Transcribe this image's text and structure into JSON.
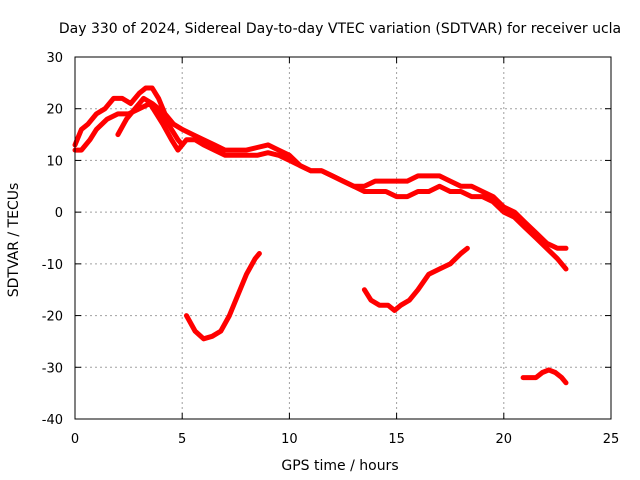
{
  "chart_data": {
    "type": "scatter",
    "title": "Day 330 of 2024, Sidereal Day-to-day VTEC variation (SDTVAR) for receiver ucla",
    "xlabel": "GPS time / hours",
    "ylabel": "SDTVAR / TECUs",
    "xlim": [
      0,
      25
    ],
    "ylim": [
      -40,
      30
    ],
    "xticks": [
      0,
      5,
      10,
      15,
      20,
      25
    ],
    "yticks": [
      -40,
      -30,
      -20,
      -10,
      0,
      10,
      20,
      30
    ],
    "grid": true,
    "series_color": "#ff0000",
    "series": [
      {
        "name": "band-upper",
        "x": [
          0.0,
          0.3,
          0.6,
          1.0,
          1.4,
          1.8,
          2.2,
          2.6,
          3.0,
          3.3,
          3.6,
          3.9,
          4.2,
          4.6,
          5.0,
          5.5,
          6.0,
          6.5,
          7.0,
          7.5,
          8.0,
          8.5,
          9.0,
          9.5,
          10.0,
          10.5,
          11.0,
          11.5,
          12.0,
          12.5,
          13.0,
          13.5,
          14.0,
          14.5,
          15.0,
          15.5,
          16.0,
          16.5,
          17.0,
          17.5,
          18.0,
          18.5,
          19.0,
          19.5,
          20.0,
          20.5,
          21.0,
          21.5,
          22.0,
          22.5,
          22.9
        ],
        "y": [
          13,
          16,
          17,
          19,
          20,
          22,
          22,
          21,
          23,
          24,
          24,
          22,
          19,
          17,
          16,
          15,
          14,
          13,
          12,
          12,
          12,
          12.5,
          13,
          12,
          11,
          9,
          8,
          8,
          7,
          6,
          5,
          5,
          6,
          6,
          6,
          6,
          7,
          7,
          7,
          6,
          5,
          5,
          4,
          3,
          1,
          0,
          -2,
          -4,
          -6,
          -7,
          -7
        ]
      },
      {
        "name": "band-lower",
        "x": [
          0.0,
          0.3,
          0.7,
          1.0,
          1.5,
          2.0,
          2.5,
          3.0,
          3.5,
          3.8,
          4.1,
          4.5,
          4.8,
          5.2,
          5.6,
          6.0,
          6.5,
          7.0,
          7.5,
          8.0,
          8.5,
          9.0,
          9.5,
          10.0,
          10.5,
          11.0,
          11.5,
          12.0,
          12.5,
          13.0,
          13.5,
          14.0,
          14.5,
          15.0,
          15.5,
          16.0,
          16.5,
          17.0,
          17.5,
          18.0,
          18.5,
          19.0,
          19.5,
          20.0,
          20.5,
          21.0,
          21.5,
          22.0,
          22.5,
          22.9
        ],
        "y": [
          12,
          12,
          14,
          16,
          18,
          19,
          19,
          20,
          21,
          19,
          17,
          14,
          12,
          14,
          14,
          13,
          12,
          11,
          11,
          11,
          11,
          11.5,
          11,
          10,
          9,
          8,
          8,
          7,
          6,
          5,
          4,
          4,
          4,
          3,
          3,
          4,
          4,
          5,
          4,
          4,
          3,
          3,
          2,
          0,
          -1,
          -3,
          -5,
          -7,
          -9,
          -11
        ]
      },
      {
        "name": "band-spur",
        "x": [
          2.0,
          2.4,
          2.8,
          3.2,
          3.6,
          3.9,
          4.2,
          4.5,
          4.8,
          5.0
        ],
        "y": [
          15,
          18,
          20,
          22,
          21,
          20,
          18,
          16,
          14,
          13
        ]
      },
      {
        "name": "dip-1",
        "x": [
          5.2,
          5.6,
          6.0,
          6.4,
          6.8,
          7.2,
          7.6,
          8.0,
          8.4,
          8.6
        ],
        "y": [
          -20,
          -23,
          -24.5,
          -24,
          -23,
          -20,
          -16,
          -12,
          -9,
          -8
        ]
      },
      {
        "name": "dip-2",
        "x": [
          13.5,
          13.8,
          14.2,
          14.6,
          14.9,
          15.2,
          15.6,
          16.0,
          16.5,
          17.0,
          17.5,
          18.0,
          18.3
        ],
        "y": [
          -15,
          -17,
          -18,
          -18,
          -19,
          -18,
          -17,
          -15,
          -12,
          -11,
          -10,
          -8,
          -7
        ]
      },
      {
        "name": "tail",
        "x": [
          20.9,
          21.2,
          21.5,
          21.8,
          22.1,
          22.4,
          22.7,
          22.9
        ],
        "y": [
          -32,
          -32,
          -32,
          -31,
          -30.5,
          -31,
          -32,
          -33
        ]
      }
    ]
  }
}
